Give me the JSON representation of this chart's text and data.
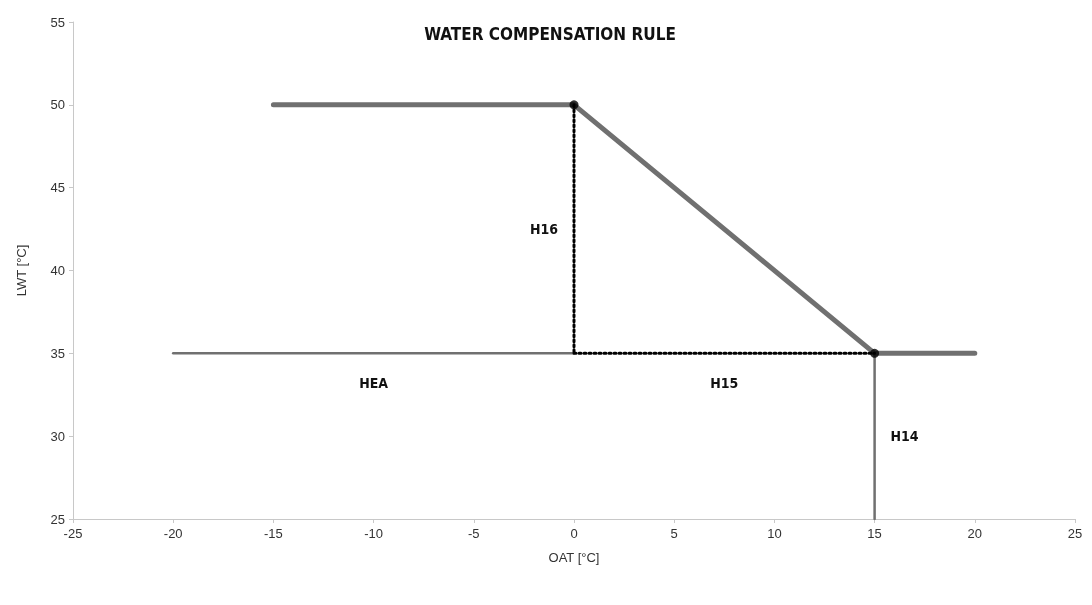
{
  "chart_data": {
    "type": "line",
    "title": "WATER COMPENSATION RULE",
    "xlabel": "OAT [°C]",
    "ylabel": "LWT [°C]",
    "xlim": [
      -25,
      25
    ],
    "xticks": [
      -25,
      -20,
      -15,
      -10,
      -5,
      0,
      5,
      10,
      15,
      20,
      25
    ],
    "ylim": [
      25,
      55
    ],
    "yticks": [
      25,
      30,
      35,
      40,
      45,
      50,
      55
    ],
    "series": [
      {
        "color": "#707070",
        "x": [
          -15,
          0,
          15,
          20
        ],
        "values": [
          50,
          50,
          35,
          35
        ],
        "line_style": "solid",
        "marker": "none"
      },
      {
        "name": "HEA",
        "color": "#707070",
        "x": [
          -20,
          0
        ],
        "values": [
          35,
          35
        ],
        "line_style": "solid",
        "marker": "none"
      },
      {
        "name": "H14",
        "color": "#707070",
        "x": [
          15,
          15
        ],
        "values": [
          35,
          25
        ],
        "line_style": "solid",
        "marker": "none"
      },
      {
        "name": "H16",
        "color": "#000000",
        "x": [
          0,
          0
        ],
        "values": [
          50,
          35
        ],
        "line_style": "dotted",
        "marker": "none"
      },
      {
        "name": "H15",
        "color": "#000000",
        "x": [
          0,
          15
        ],
        "values": [
          35,
          35
        ],
        "line_style": "dotted",
        "marker": "none"
      },
      {
        "type": "scatter",
        "color": "#000000",
        "x": [
          0,
          15
        ],
        "values": [
          50,
          35
        ],
        "marker": "circle"
      }
    ]
  }
}
